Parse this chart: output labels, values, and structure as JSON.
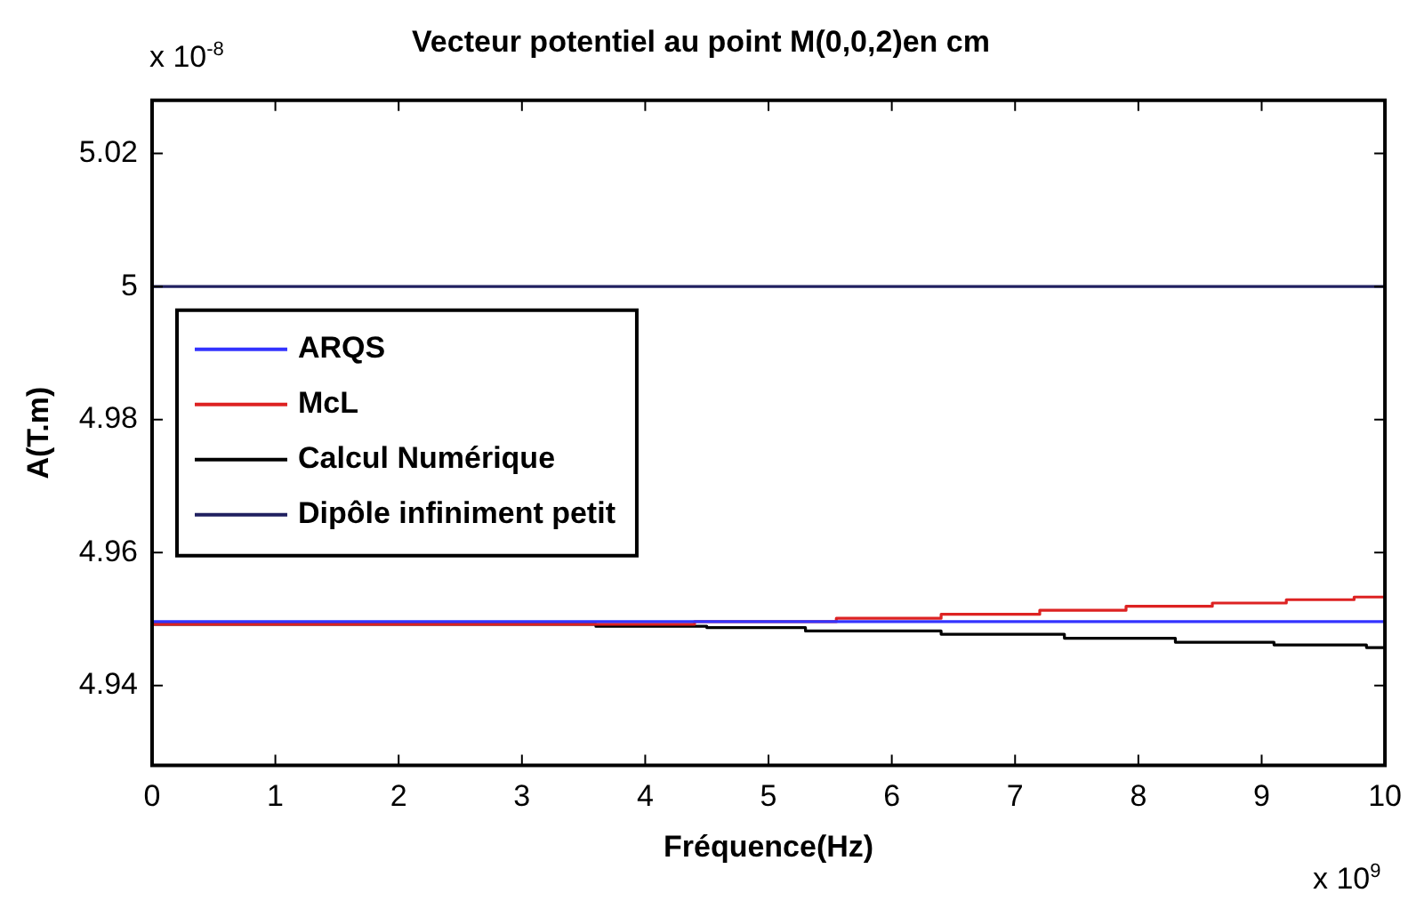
{
  "chart_data": {
    "type": "line",
    "title": "Vecteur potentiel au point M(0,0,2)en cm",
    "xlabel": "Fréquence(Hz)",
    "ylabel": "A(T.m)",
    "annotations": [
      "x 10$^{-8}$",
      "x 10$^{9}$"
    ],
    "xlim": [
      0,
      10
    ],
    "xticks": [
      0,
      1,
      2,
      3,
      4,
      5,
      6,
      7,
      8,
      9,
      10
    ],
    "ylim": [
      4.928,
      5.028
    ],
    "yticks": [
      4.94,
      4.96,
      4.98,
      5,
      5.02
    ],
    "grid": false,
    "legend": "top left",
    "marker": "none",
    "line_style": "solid",
    "series": [
      {
        "name": "ARQS",
        "color": "#3333ff",
        "x": [
          0,
          10
        ],
        "values": [
          4.9496,
          4.9496
        ]
      },
      {
        "name": "McL",
        "type": "step",
        "color": "#dd2222",
        "x": [
          0,
          4.4,
          5.55,
          6.4,
          7.2,
          7.9,
          8.6,
          9.2,
          9.75,
          10
        ],
        "values": [
          4.9492,
          4.9496,
          4.9501,
          4.9507,
          4.9513,
          4.9519,
          4.9524,
          4.9529,
          4.9533,
          4.9533
        ]
      },
      {
        "name": "Calcul Numérique",
        "type": "step",
        "color": "#000000",
        "x": [
          0,
          3.6,
          4.5,
          5.3,
          6.4,
          7.4,
          8.3,
          9.1,
          9.85,
          10
        ],
        "values": [
          4.9492,
          4.9489,
          4.9487,
          4.9482,
          4.9477,
          4.9471,
          4.9465,
          4.9461,
          4.9457,
          4.9457
        ]
      },
      {
        "name": "Dipôle infiniment petit",
        "color": "#202060",
        "x": [
          0,
          10
        ],
        "values": [
          5,
          5
        ]
      }
    ]
  }
}
